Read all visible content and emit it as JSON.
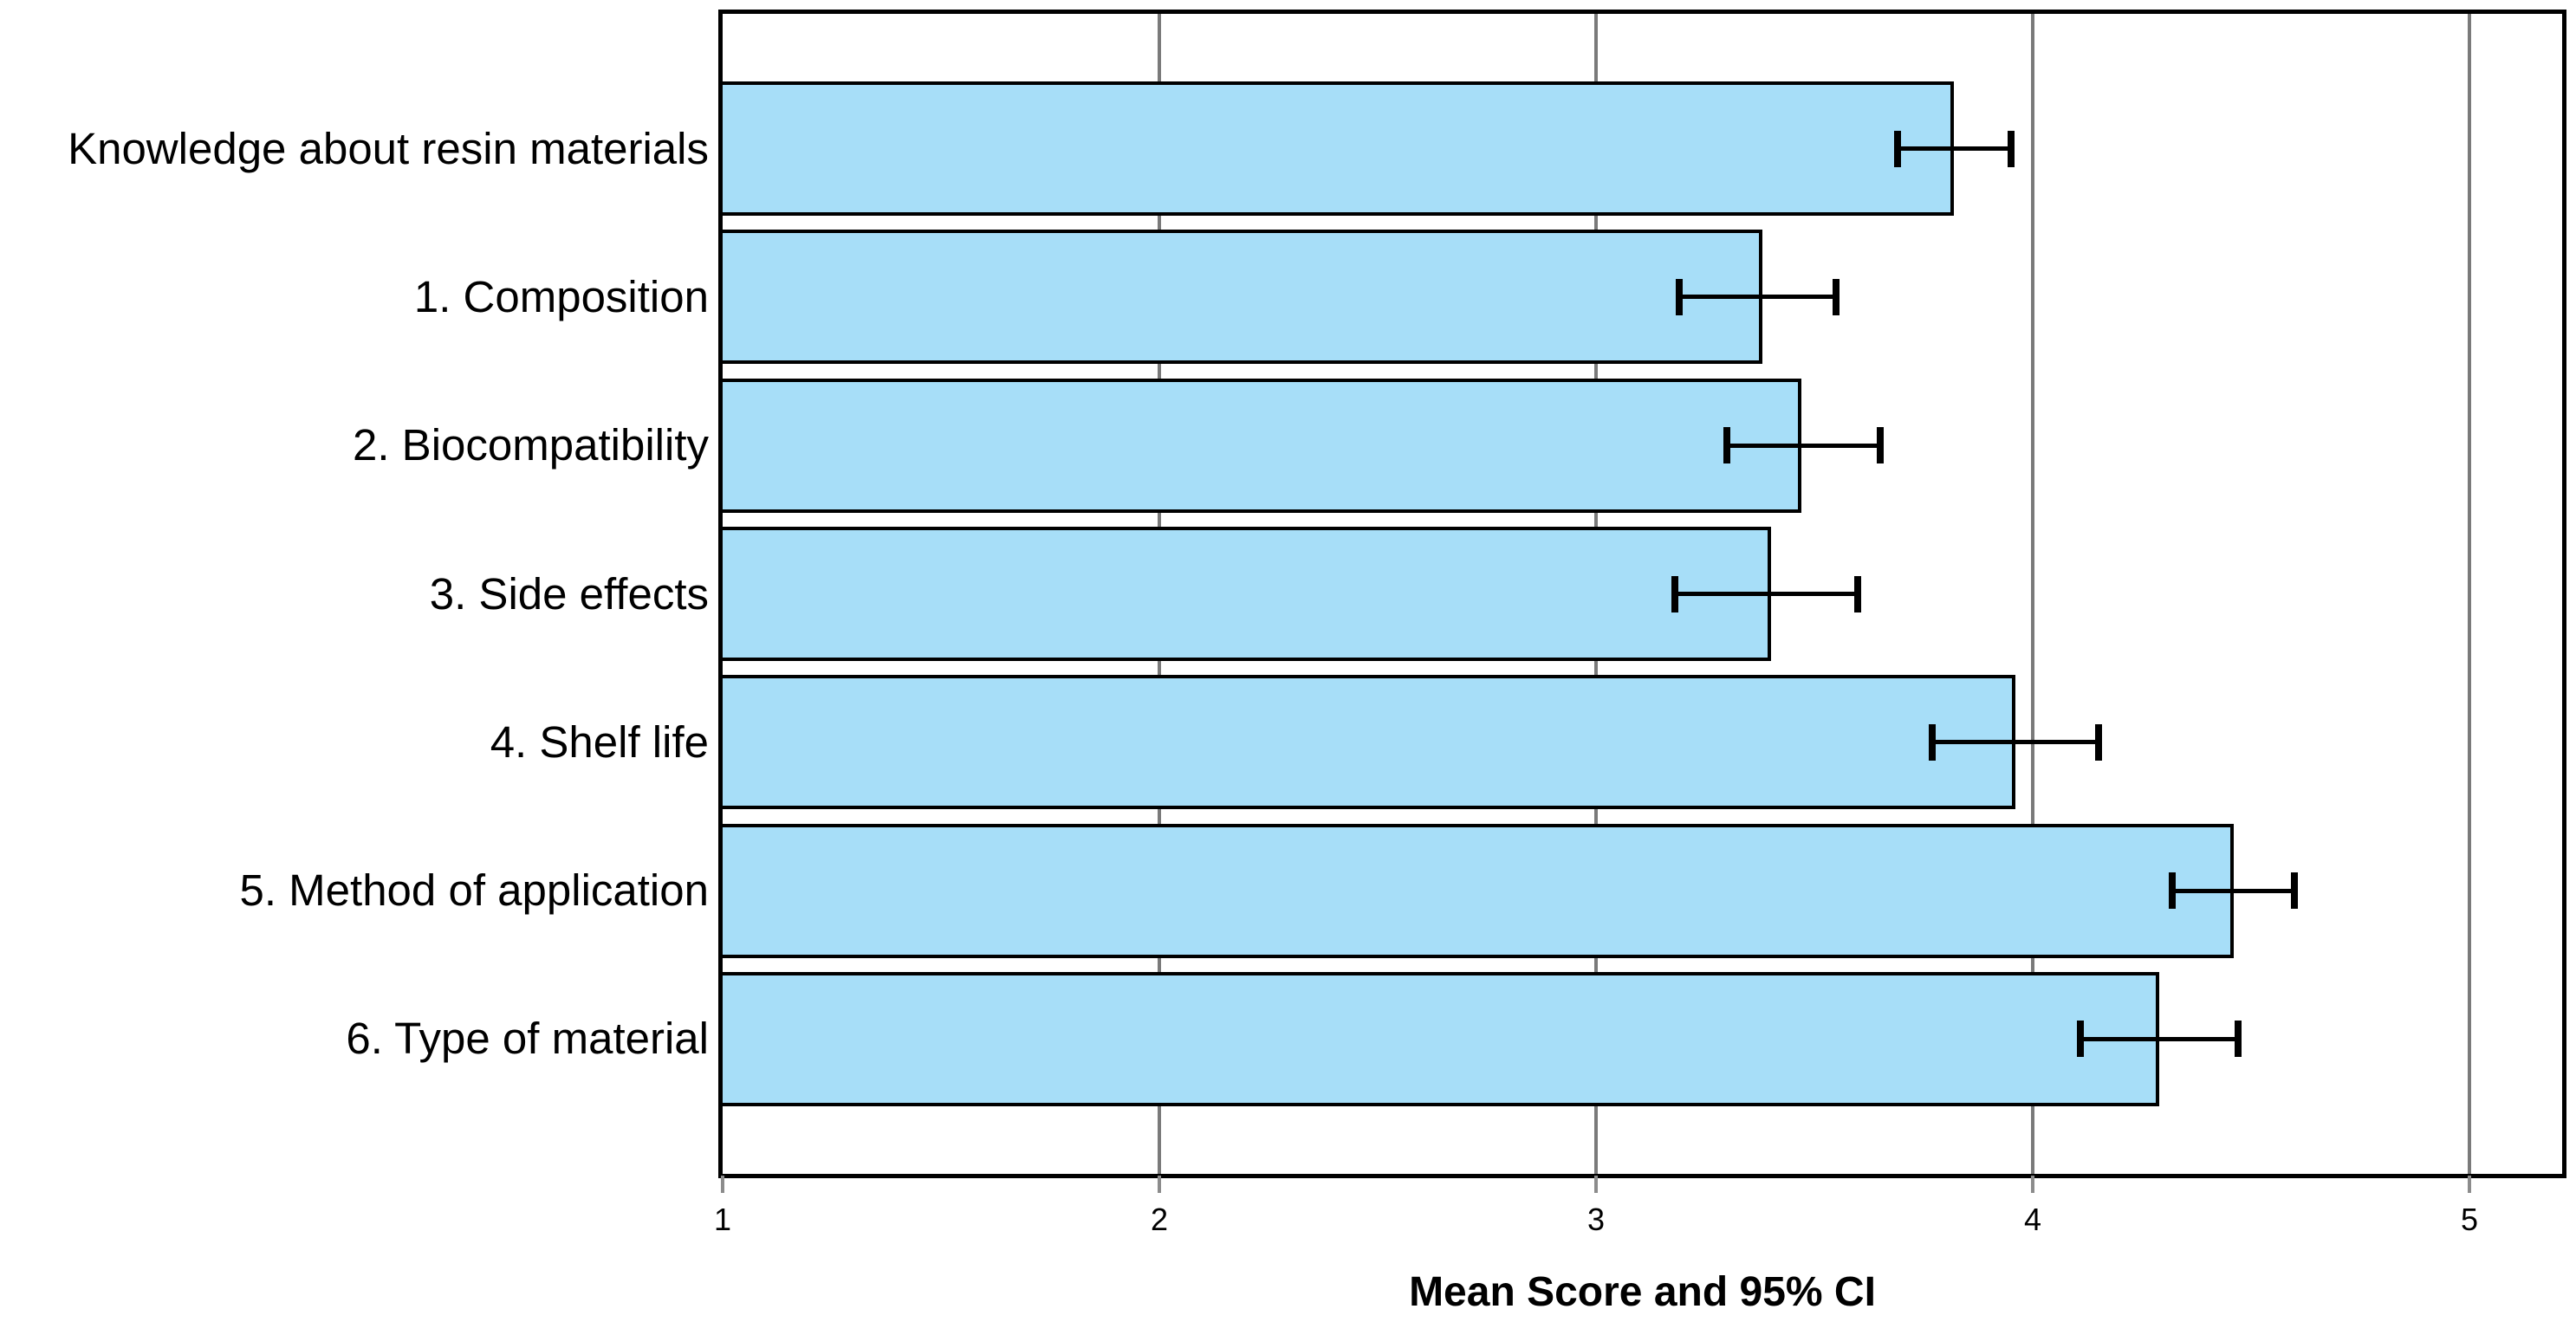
{
  "chart_data": {
    "type": "bar",
    "orientation": "horizontal",
    "title": "",
    "xlabel": "Mean Score and 95% CI",
    "ylabel": "",
    "categories": [
      "Knowledge about resin materials",
      "1. Composition",
      "2. Biocompatibility",
      "3. Side effects",
      "4. Shelf life",
      "5. Method of application",
      "6. Type of material"
    ],
    "series": [
      {
        "name": "Mean Score",
        "values": [
          3.82,
          3.38,
          3.47,
          3.4,
          3.96,
          4.46,
          4.29
        ]
      }
    ],
    "error_bars": {
      "type": "95% CI",
      "lower": [
        3.69,
        3.19,
        3.3,
        3.18,
        3.77,
        4.32,
        4.11
      ],
      "upper": [
        3.95,
        3.55,
        3.65,
        3.6,
        4.15,
        4.6,
        4.47
      ]
    },
    "x_ticks": [
      "1",
      "2",
      "3",
      "4",
      "5"
    ],
    "x_tick_values": [
      1,
      2,
      3,
      4,
      5
    ],
    "xlim": [
      1,
      5.21
    ],
    "grid": "vertical gridlines at ticks 2,3,4,5",
    "legend": "none",
    "colors": {
      "bar_fill": "#a7def8",
      "bar_border": "#000000",
      "gridline": "#7a7a7a",
      "frame": "#000000",
      "tick": "#8c8c8c",
      "text": "#000000"
    }
  }
}
